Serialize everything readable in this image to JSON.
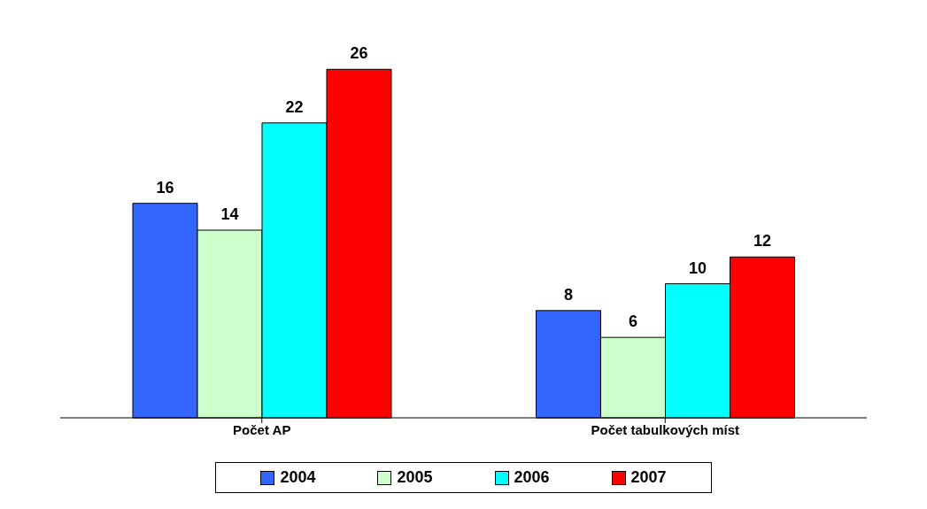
{
  "chart_data": {
    "type": "bar",
    "categories": [
      "Počet AP",
      "Počet tabulkových míst"
    ],
    "series": [
      {
        "name": "2004",
        "color": "#3366ff",
        "values": [
          16,
          8
        ]
      },
      {
        "name": "2005",
        "color": "#ccffcc",
        "values": [
          14,
          6
        ]
      },
      {
        "name": "2006",
        "color": "#00ffff",
        "values": [
          22,
          10
        ]
      },
      {
        "name": "2007",
        "color": "#ff0000",
        "values": [
          26,
          12
        ]
      }
    ],
    "data_labels": true,
    "legend": "bottom",
    "grid": false
  }
}
